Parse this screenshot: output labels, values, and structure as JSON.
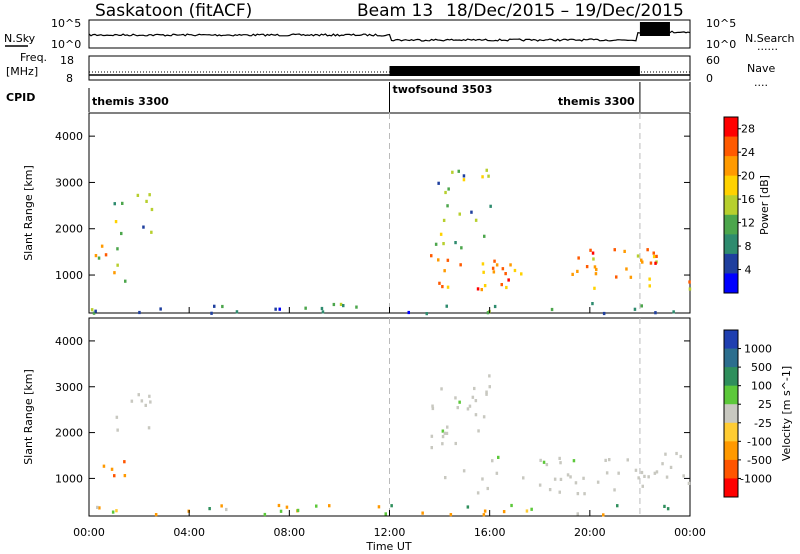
{
  "header": {
    "station": "Saskatoon (fitACF)",
    "beam": "Beam 13",
    "dates": "18/Dec/2015 – 19/Dec/2015"
  },
  "labels": {
    "nsky": "N.Sky",
    "nsearch": "N.Search",
    "freq": "Freq.",
    "mhz": "[MHz]",
    "cpid": "CPID",
    "nave": "Nave",
    "dots": "......",
    "dots2": "....",
    "x_axis": "Time UT"
  },
  "noise_ticks": {
    "left_top": "10^5",
    "left_bottom": "10^0",
    "right_top": "10^5",
    "right_bottom": "10^0"
  },
  "freq_ticks": {
    "left_top": "18",
    "left_bottom": "8",
    "right_top": "60",
    "right_bottom": "0"
  },
  "cpid_segments": [
    {
      "name": "themis 3300",
      "start_hour": 0,
      "end_hour": 12
    },
    {
      "name": "twofsound 3503",
      "start_hour": 12,
      "end_hour": 22
    },
    {
      "name": "themis 3300",
      "start_hour": 22,
      "end_hour": 24
    }
  ],
  "chart_data": [
    {
      "type": "heatmap",
      "panel": "power",
      "xlabel": "",
      "ylabel": "Slant Range [km]",
      "x_range_hours": [
        0,
        24
      ],
      "ylim": [
        180,
        4500
      ],
      "yticks": [
        "1000",
        "2000",
        "3000",
        "4000"
      ],
      "colorbar_label": "Power [dB]",
      "colorbar_ticks": [
        "4",
        "8",
        "12",
        "16",
        "20",
        "24",
        "28"
      ],
      "colorbar_range": [
        0,
        30
      ],
      "colors": [
        "#0000ff",
        "#1f3f9e",
        "#2e8b6e",
        "#4ca64c",
        "#b7cf2e",
        "#ffd200",
        "#ff9a00",
        "#ff5a00",
        "#ff0000"
      ],
      "regions": [
        {
          "t0": 0.2,
          "t1": 1.5,
          "r0": 900,
          "r1": 1700,
          "level": 0.6
        },
        {
          "t0": 0.9,
          "t1": 2.6,
          "r0": 1900,
          "r1": 3000,
          "level": 0.35
        },
        {
          "t0": 13.6,
          "t1": 24,
          "r0": 700,
          "r1": 1600,
          "level": 0.75
        },
        {
          "t0": 13.6,
          "t1": 16,
          "r0": 1600,
          "r1": 3300,
          "level": 0.4
        },
        {
          "t0": 0,
          "t1": 24,
          "r0": 200,
          "r1": 450,
          "level": 0.3
        }
      ]
    },
    {
      "type": "heatmap",
      "panel": "velocity",
      "xlabel": "Time UT",
      "ylabel": "Slant Range [km]",
      "x_range_hours": [
        0,
        24
      ],
      "xticks": [
        "00:00",
        "04:00",
        "08:00",
        "12:00",
        "16:00",
        "20:00",
        "00:00"
      ],
      "ylim": [
        180,
        4500
      ],
      "yticks": [
        "1000",
        "2000",
        "3000",
        "4000"
      ],
      "colorbar_label": "Velocity [m s^-1]",
      "colorbar_ticks": [
        "1000",
        "500",
        "100",
        "25",
        "-25",
        "-100",
        "-500",
        "-1000"
      ],
      "colorbar_range": [
        -1000,
        1000
      ],
      "colors": [
        "#1f3fb0",
        "#2c6e8e",
        "#2f8f5c",
        "#5cc83a",
        "#c8c8c0",
        "#ffcc33",
        "#ff9900",
        "#ff5500",
        "#ff0000"
      ],
      "regions": [
        {
          "t0": 0.2,
          "t1": 1.5,
          "r0": 900,
          "r1": 1700,
          "level": -500
        },
        {
          "t0": 0.9,
          "t1": 2.6,
          "r0": 1900,
          "r1": 3000,
          "level": 0
        },
        {
          "t0": 13.6,
          "t1": 24,
          "r0": 700,
          "r1": 1600,
          "level": 0
        },
        {
          "t0": 13.6,
          "t1": 16,
          "r0": 1600,
          "r1": 3300,
          "level": 0
        },
        {
          "t0": 0,
          "t1": 24,
          "r0": 200,
          "r1": 450,
          "level": -80
        }
      ]
    }
  ]
}
